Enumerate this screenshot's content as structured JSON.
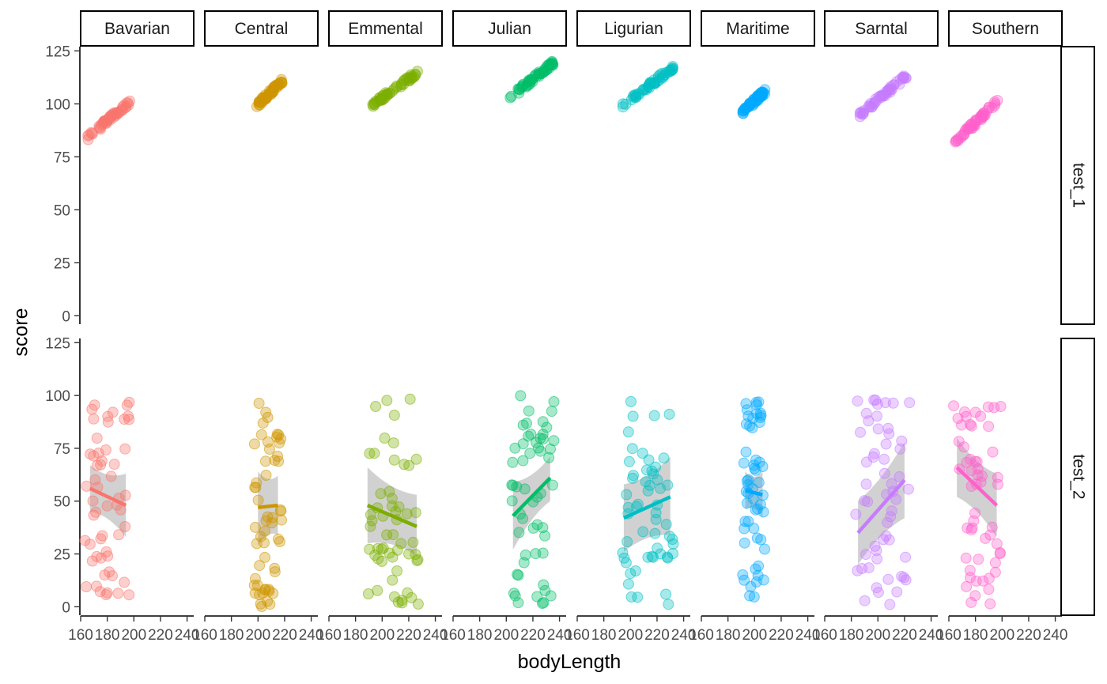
{
  "chart_data": {
    "type": "scatter",
    "xlabel": "bodyLength",
    "ylabel": "score",
    "x_ticks": [
      160,
      180,
      200,
      220,
      240
    ],
    "xlim": [
      160,
      245
    ],
    "y_ticks": [
      0,
      25,
      50,
      75,
      100,
      125
    ],
    "ylim": [
      -4,
      127
    ],
    "column_facets": [
      "Bavarian",
      "Central",
      "Emmental",
      "Julian",
      "Ligurian",
      "Maritime",
      "Sarntal",
      "Southern"
    ],
    "row_facets": [
      "test_1",
      "test_2"
    ],
    "point_alpha": 0.35,
    "smooth": "linear regression with confidence ribbon",
    "colors": {
      "Bavarian": "#F8766D",
      "Central": "#CD9600",
      "Emmental": "#7CAE00",
      "Julian": "#00BE67",
      "Ligurian": "#00BFC4",
      "Maritime": "#00A9FF",
      "Sarntal": "#C77CFF",
      "Southern": "#FF61CC"
    },
    "ribbon_color": "#999999",
    "series": [
      {
        "name": "Bavarian",
        "facet": "test_1",
        "x_range": [
          165,
          197
        ],
        "y_range": [
          84,
          101
        ]
      },
      {
        "name": "Central",
        "facet": "test_1",
        "x_range": [
          199,
          218
        ],
        "y_range": [
          99,
          111
        ]
      },
      {
        "name": "Emmental",
        "facet": "test_1",
        "x_range": [
          187,
          227
        ],
        "y_range": [
          97,
          115
        ]
      },
      {
        "name": "Julian",
        "facet": "test_1",
        "x_range": [
          203,
          236
        ],
        "y_range": [
          103,
          120
        ]
      },
      {
        "name": "Ligurian",
        "facet": "test_1",
        "x_range": [
          193,
          232
        ],
        "y_range": [
          99,
          117
        ]
      },
      {
        "name": "Maritime",
        "facet": "test_1",
        "x_range": [
          191,
          208
        ],
        "y_range": [
          96,
          106
        ]
      },
      {
        "name": "Sarntal",
        "facet": "test_1",
        "x_range": [
          183,
          223
        ],
        "y_range": [
          93,
          114
        ]
      },
      {
        "name": "Southern",
        "facet": "test_1",
        "x_range": [
          165,
          198
        ],
        "y_range": [
          82,
          102
        ]
      },
      {
        "name": "Bavarian",
        "facet": "test_2",
        "x_range": [
          163,
          197
        ],
        "y_range": [
          4,
          98
        ],
        "fit": {
          "x": [
            167,
            194
          ],
          "y": [
            56,
            48
          ],
          "ci_low": [
            45,
            33
          ],
          "ci_high": [
            67,
            63
          ]
        }
      },
      {
        "name": "Central",
        "facet": "test_2",
        "x_range": [
          197,
          218
        ],
        "y_range": [
          0,
          100
        ],
        "fit": {
          "x": [
            200,
            215
          ],
          "y": [
            47,
            48
          ],
          "ci_low": [
            29,
            34
          ],
          "ci_high": [
            64,
            62
          ]
        }
      },
      {
        "name": "Emmental",
        "facet": "test_2",
        "x_range": [
          188,
          228
        ],
        "y_range": [
          0,
          99
        ],
        "fit": {
          "x": [
            189,
            226
          ],
          "y": [
            48,
            38
          ],
          "ci_low": [
            30,
            24
          ],
          "ci_high": [
            66,
            53
          ]
        }
      },
      {
        "name": "Julian",
        "facet": "test_2",
        "x_range": [
          203,
          236
        ],
        "y_range": [
          1,
          100
        ],
        "fit": {
          "x": [
            205,
            233
          ],
          "y": [
            43,
            61
          ],
          "ci_low": [
            27,
            50
          ],
          "ci_high": [
            59,
            71
          ]
        }
      },
      {
        "name": "Ligurian",
        "facet": "test_2",
        "x_range": [
          193,
          233
        ],
        "y_range": [
          0,
          100
        ],
        "fit": {
          "x": [
            195,
            230
          ],
          "y": [
            42,
            52
          ],
          "ci_low": [
            26,
            34
          ],
          "ci_high": [
            58,
            71
          ]
        }
      },
      {
        "name": "Maritime",
        "facet": "test_2",
        "x_range": [
          191,
          208
        ],
        "y_range": [
          4,
          97
        ],
        "fit": {
          "x": [
            193,
            206
          ],
          "y": [
            55,
            53
          ],
          "ci_low": [
            46,
            42
          ],
          "ci_high": [
            64,
            64
          ]
        }
      },
      {
        "name": "Sarntal",
        "facet": "test_2",
        "x_range": [
          183,
          224
        ],
        "y_range": [
          1,
          98
        ],
        "fit": {
          "x": [
            185,
            220
          ],
          "y": [
            35,
            60
          ],
          "ci_low": [
            20,
            42
          ],
          "ci_high": [
            50,
            78
          ]
        }
      },
      {
        "name": "Southern",
        "facet": "test_2",
        "x_range": [
          163,
          199
        ],
        "y_range": [
          0,
          98
        ],
        "fit": {
          "x": [
            166,
            196
          ],
          "y": [
            66,
            48
          ],
          "ci_low": [
            52,
            33
          ],
          "ci_high": [
            80,
            63
          ]
        }
      }
    ]
  }
}
